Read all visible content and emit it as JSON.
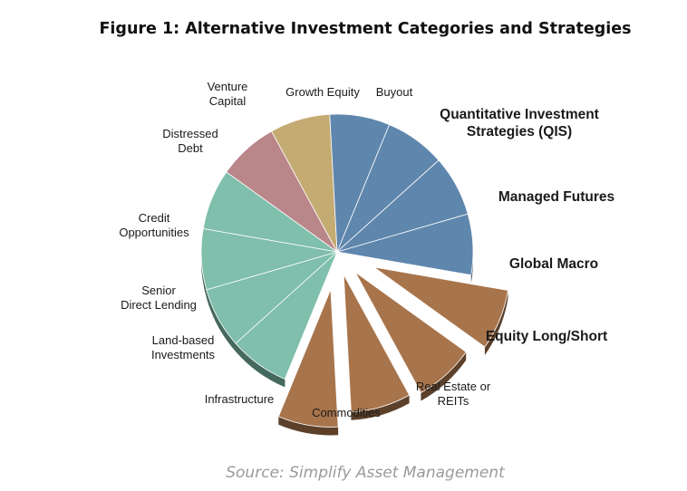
{
  "title": "Figure 1: Alternative Investment Categories and Strategies",
  "source": "Source: Simplify Asset Management",
  "chart_data": {
    "type": "pie",
    "title": "Figure 1: Alternative Investment Categories and Strategies",
    "slices": [
      {
        "label": "Buyout",
        "value": 1,
        "color": "#5f86ad",
        "exploded": false,
        "bold": false
      },
      {
        "label": "Quantitative Investment Strategies (QIS)",
        "value": 1,
        "color": "#a8744b",
        "exploded": true,
        "bold": true
      },
      {
        "label": "Managed Futures",
        "value": 1,
        "color": "#a8744b",
        "exploded": true,
        "bold": true
      },
      {
        "label": "Global Macro",
        "value": 1,
        "color": "#a8744b",
        "exploded": true,
        "bold": true
      },
      {
        "label": "Equity Long/Short",
        "value": 1,
        "color": "#a8744b",
        "exploded": true,
        "bold": true
      },
      {
        "label": "Real Estate or REITs",
        "value": 1,
        "color": "#7fbfac",
        "exploded": false,
        "bold": false
      },
      {
        "label": "Commodities",
        "value": 1,
        "color": "#7fbfac",
        "exploded": false,
        "bold": false
      },
      {
        "label": "Infrastructure",
        "value": 1,
        "color": "#7fbfac",
        "exploded": false,
        "bold": false
      },
      {
        "label": "Land-based Investments",
        "value": 1,
        "color": "#7fbfac",
        "exploded": false,
        "bold": false
      },
      {
        "label": "Senior Direct Lending",
        "value": 1,
        "color": "#b9878a",
        "exploded": false,
        "bold": false
      },
      {
        "label": "Credit Opportunities",
        "value": 1,
        "color": "#c4ab72",
        "exploded": false,
        "bold": false
      },
      {
        "label": "Distressed Debt",
        "value": 1,
        "color": "#5f86ad",
        "exploded": false,
        "bold": false
      },
      {
        "label": "Venture Capital",
        "value": 1,
        "color": "#5f86ad",
        "exploded": false,
        "bold": false
      },
      {
        "label": "Growth Equity",
        "value": 1,
        "color": "#5f86ad",
        "exploded": false,
        "bold": false
      }
    ]
  }
}
